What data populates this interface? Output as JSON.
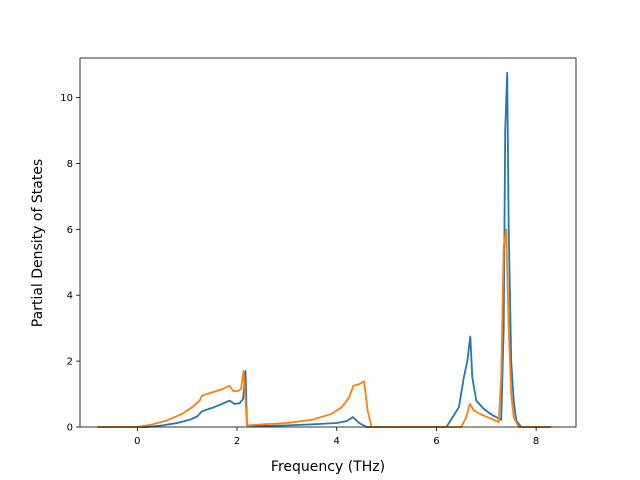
{
  "chart_data": {
    "type": "line",
    "title": "",
    "xlabel": "Frequency (THz)",
    "ylabel": "Partial Density of States",
    "xlim": [
      -1.15,
      8.8
    ],
    "ylim": [
      0,
      11.2
    ],
    "xticks": [
      0,
      2,
      4,
      6,
      8
    ],
    "yticks": [
      0,
      2,
      4,
      6,
      8,
      10
    ],
    "grid": false,
    "legend": "none",
    "series": [
      {
        "color": "#1f77b4",
        "points": [
          [
            -0.8,
            0
          ],
          [
            0.2,
            0
          ],
          [
            0.5,
            0.05
          ],
          [
            0.8,
            0.12
          ],
          [
            1.05,
            0.22
          ],
          [
            1.2,
            0.32
          ],
          [
            1.3,
            0.48
          ],
          [
            1.5,
            0.58
          ],
          [
            1.7,
            0.7
          ],
          [
            1.85,
            0.8
          ],
          [
            1.95,
            0.7
          ],
          [
            2.05,
            0.72
          ],
          [
            2.12,
            0.85
          ],
          [
            2.17,
            1.7
          ],
          [
            2.2,
            0.05
          ],
          [
            2.5,
            0.03
          ],
          [
            3.0,
            0.05
          ],
          [
            3.5,
            0.08
          ],
          [
            4.0,
            0.12
          ],
          [
            4.2,
            0.18
          ],
          [
            4.32,
            0.3
          ],
          [
            4.45,
            0.12
          ],
          [
            4.6,
            0
          ],
          [
            5.5,
            0
          ],
          [
            6.2,
            0
          ],
          [
            6.45,
            0.6
          ],
          [
            6.55,
            1.5
          ],
          [
            6.62,
            2.0
          ],
          [
            6.68,
            2.75
          ],
          [
            6.72,
            1.5
          ],
          [
            6.8,
            0.8
          ],
          [
            6.95,
            0.55
          ],
          [
            7.1,
            0.38
          ],
          [
            7.3,
            0.22
          ],
          [
            7.35,
            3.0
          ],
          [
            7.38,
            9.0
          ],
          [
            7.42,
            10.75
          ],
          [
            7.45,
            6.0
          ],
          [
            7.5,
            2.0
          ],
          [
            7.55,
            0.8
          ],
          [
            7.6,
            0.2
          ],
          [
            7.7,
            0
          ],
          [
            8.3,
            0
          ]
        ]
      },
      {
        "color": "#ff7f0e",
        "points": [
          [
            -0.8,
            0
          ],
          [
            0.0,
            0
          ],
          [
            0.3,
            0.08
          ],
          [
            0.6,
            0.2
          ],
          [
            0.9,
            0.4
          ],
          [
            1.1,
            0.6
          ],
          [
            1.25,
            0.8
          ],
          [
            1.3,
            0.95
          ],
          [
            1.5,
            1.05
          ],
          [
            1.7,
            1.15
          ],
          [
            1.85,
            1.25
          ],
          [
            1.92,
            1.1
          ],
          [
            2.0,
            1.08
          ],
          [
            2.08,
            1.15
          ],
          [
            2.13,
            1.7
          ],
          [
            2.17,
            0.8
          ],
          [
            2.2,
            0.05
          ],
          [
            2.5,
            0.08
          ],
          [
            3.0,
            0.12
          ],
          [
            3.5,
            0.22
          ],
          [
            3.9,
            0.4
          ],
          [
            4.1,
            0.6
          ],
          [
            4.25,
            0.9
          ],
          [
            4.33,
            1.25
          ],
          [
            4.45,
            1.3
          ],
          [
            4.55,
            1.38
          ],
          [
            4.62,
            0.5
          ],
          [
            4.7,
            0
          ],
          [
            6.5,
            0
          ],
          [
            6.6,
            0.3
          ],
          [
            6.67,
            0.7
          ],
          [
            6.75,
            0.5
          ],
          [
            6.9,
            0.38
          ],
          [
            7.1,
            0.25
          ],
          [
            7.25,
            0.15
          ],
          [
            7.3,
            1.5
          ],
          [
            7.35,
            5.5
          ],
          [
            7.4,
            6.0
          ],
          [
            7.45,
            3.0
          ],
          [
            7.5,
            1.0
          ],
          [
            7.55,
            0.3
          ],
          [
            7.65,
            0
          ],
          [
            8.3,
            0
          ]
        ]
      }
    ]
  }
}
